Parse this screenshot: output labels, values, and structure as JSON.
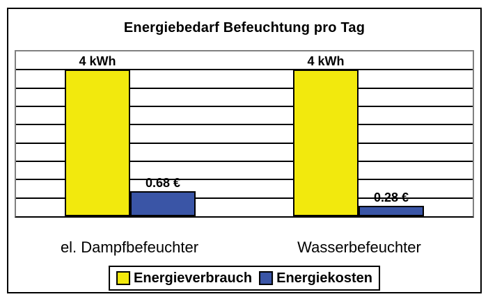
{
  "figure": {
    "background": "#ffffff",
    "border_color": "#000000"
  },
  "chart_data": {
    "type": "bar",
    "title": "Energiebedarf Befeuchtung pro Tag",
    "categories": [
      "el. Dampfbefeuchter",
      "Wasserbefeuchter"
    ],
    "series": [
      {
        "name": "Energieverbrauch",
        "color": "#F2E90D",
        "values": [
          4,
          4
        ],
        "data_labels": [
          "4 kWh",
          "4 kWh"
        ]
      },
      {
        "name": "Energiekosten",
        "color": "#3A55A6",
        "values": [
          0.68,
          0.28
        ],
        "data_labels": [
          "0.68 €",
          "0.28 €"
        ]
      }
    ],
    "xlabel": "",
    "ylabel": "",
    "ylim": [
      0,
      4.5
    ],
    "gridline_step": 0.5,
    "grid": true,
    "gridline_color": "#000000",
    "plot_border_color": "#808080",
    "axis_color": "#000000",
    "legend_position": "bottom"
  }
}
